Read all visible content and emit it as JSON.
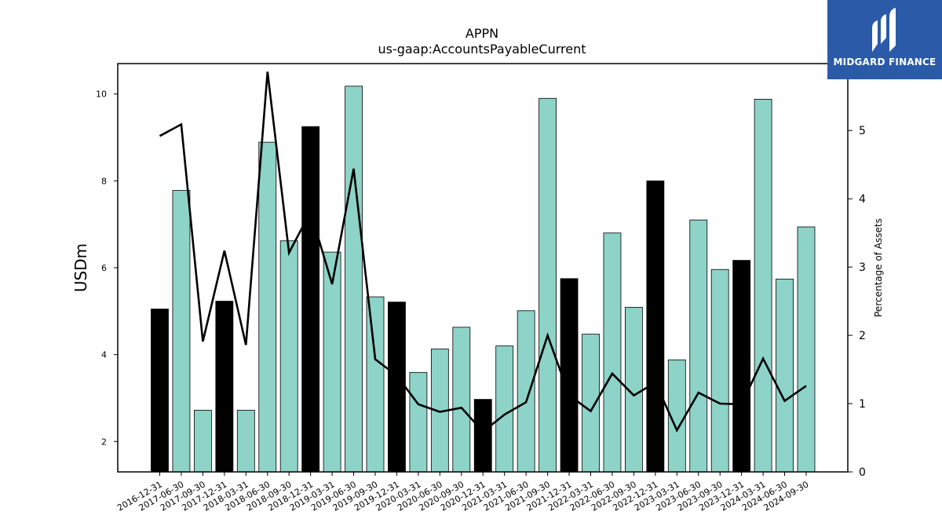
{
  "chart_data": {
    "type": "bar",
    "title": "APPN",
    "subtitle": "us-gaap:AccountsPayableCurrent",
    "ylabel": "USDm",
    "y2label": "Percentage of Assets",
    "ylim": [
      1.3,
      10.7
    ],
    "y2lim": [
      0,
      5.98
    ],
    "yticks": [
      2,
      4,
      6,
      8,
      10
    ],
    "y2ticks": [
      0,
      1,
      2,
      3,
      4,
      5
    ],
    "categories": [
      "2016-12-31",
      "2017-06-30",
      "2017-09-30",
      "2017-12-31",
      "2018-03-31",
      "2018-06-30",
      "2018-09-30",
      "2018-12-31",
      "2019-03-31",
      "2019-06-30",
      "2019-09-30",
      "2019-12-31",
      "2020-03-31",
      "2020-06-30",
      "2020-09-30",
      "2020-12-31",
      "2021-03-31",
      "2021-06-30",
      "2021-09-30",
      "2021-12-31",
      "2022-03-31",
      "2022-06-30",
      "2022-09-30",
      "2022-12-31",
      "2023-03-31",
      "2023-06-30",
      "2023-09-30",
      "2023-12-31",
      "2024-03-31",
      "2024-06-30",
      "2024-09-30"
    ],
    "series": [
      {
        "values": [
          5.05,
          7.78,
          2.72,
          5.23,
          2.72,
          8.89,
          6.62,
          9.25,
          6.36,
          10.18,
          5.33,
          5.21,
          3.59,
          4.13,
          4.63,
          2.97,
          4.2,
          5.01,
          9.9,
          5.75,
          4.47,
          6.8,
          5.09,
          8.0,
          3.88,
          7.1,
          5.96,
          6.17,
          9.88,
          5.74,
          6.94
        ]
      },
      {
        "type": "line",
        "axis": "right",
        "values": [
          4.92,
          5.09,
          1.91,
          3.24,
          1.86,
          5.86,
          3.21,
          3.81,
          2.75,
          4.44,
          1.65,
          1.41,
          0.99,
          0.88,
          0.94,
          0.59,
          0.84,
          1.02,
          2.0,
          1.12,
          0.89,
          1.44,
          1.12,
          1.31,
          0.61,
          1.16,
          1.0,
          0.99,
          1.66,
          1.04,
          1.26
        ]
      }
    ],
    "colors": {
      "bar_q4": "#000000",
      "bar_other": "#8dd3c7",
      "line": "#000000"
    },
    "grid": false,
    "legend": "none"
  },
  "logo": {
    "text": "MIDGARD FINANCE",
    "background": "#2b5aa8"
  }
}
